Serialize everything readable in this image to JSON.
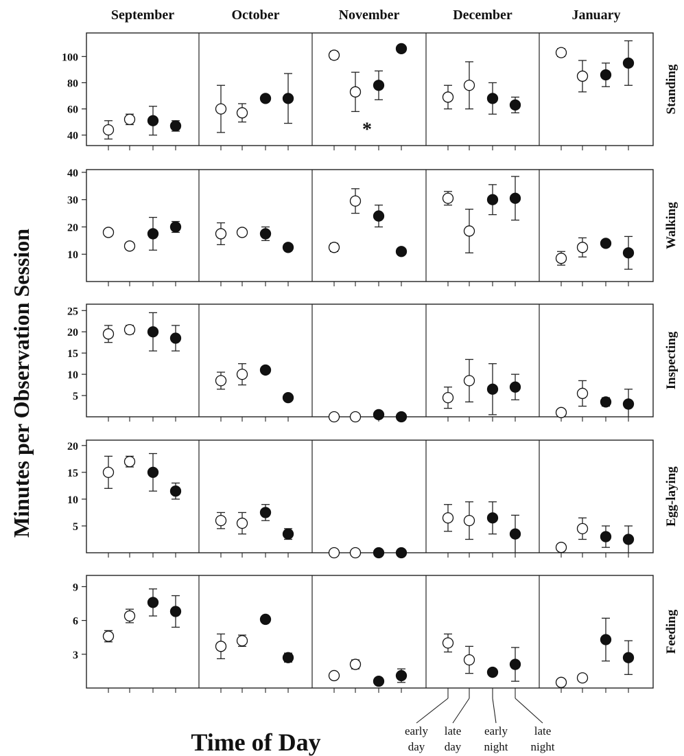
{
  "chart_data": {
    "type": "scatter",
    "error_bars": true,
    "grid": false,
    "ylabel": "Minutes per Observation Session",
    "xlabel": "Time of Day",
    "months": [
      "September",
      "October",
      "November",
      "December",
      "January"
    ],
    "time_of_day_legend": [
      {
        "line1": "early",
        "line2": "day",
        "filled": false
      },
      {
        "line1": "late",
        "line2": "day",
        "filled": false
      },
      {
        "line1": "early",
        "line2": "night",
        "filled": true
      },
      {
        "line1": "late",
        "line2": "night",
        "filled": true
      }
    ],
    "panels": [
      {
        "behavior": "Standing",
        "ylim": [
          32,
          118
        ],
        "yticks": [
          40,
          60,
          80,
          100
        ],
        "annotation": {
          "text": "*",
          "month": "November",
          "y": 46,
          "x_index": 1.5
        },
        "data": [
          {
            "month": "September",
            "points": [
              [
                44,
                7
              ],
              [
                52,
                4
              ],
              [
                51,
                11
              ],
              [
                47,
                4
              ]
            ]
          },
          {
            "month": "October",
            "points": [
              [
                60,
                18
              ],
              [
                57,
                7
              ],
              [
                68,
                0
              ],
              [
                68,
                19
              ]
            ]
          },
          {
            "month": "November",
            "points": [
              [
                101,
                3
              ],
              [
                73,
                15
              ],
              [
                78,
                11
              ],
              [
                106,
                0
              ]
            ]
          },
          {
            "month": "December",
            "points": [
              [
                69,
                9
              ],
              [
                78,
                18
              ],
              [
                68,
                12
              ],
              [
                63,
                6
              ]
            ]
          },
          {
            "month": "January",
            "points": [
              [
                103,
                3
              ],
              [
                85,
                12
              ],
              [
                86,
                9
              ],
              [
                95,
                17
              ]
            ]
          }
        ]
      },
      {
        "behavior": "Walking",
        "ylim": [
          0,
          41
        ],
        "yticks": [
          10,
          20,
          30,
          40
        ],
        "data": [
          {
            "month": "September",
            "points": [
              [
                18,
                0
              ],
              [
                13,
                1
              ],
              [
                17.5,
                6
              ],
              [
                20,
                2
              ]
            ]
          },
          {
            "month": "October",
            "points": [
              [
                17.5,
                4
              ],
              [
                18,
                0
              ],
              [
                17.5,
                2.5
              ],
              [
                12.5,
                0.5
              ]
            ]
          },
          {
            "month": "November",
            "points": [
              [
                12.5,
                1.5
              ],
              [
                29.5,
                4.5
              ],
              [
                24,
                4
              ],
              [
                11,
                0
              ]
            ]
          },
          {
            "month": "December",
            "points": [
              [
                30.5,
                2.5
              ],
              [
                18.5,
                8
              ],
              [
                30,
                5.5
              ],
              [
                30.5,
                8
              ]
            ]
          },
          {
            "month": "January",
            "points": [
              [
                8.5,
                2.5
              ],
              [
                12.5,
                3.5
              ],
              [
                14,
                0
              ],
              [
                10.5,
                6
              ]
            ]
          }
        ]
      },
      {
        "behavior": "Inspecting",
        "ylim": [
          0,
          26.5
        ],
        "yticks": [
          5,
          10,
          15,
          20,
          25
        ],
        "data": [
          {
            "month": "September",
            "points": [
              [
                19.5,
                2
              ],
              [
                20.5,
                1
              ],
              [
                20,
                4.5
              ],
              [
                18.5,
                3
              ]
            ]
          },
          {
            "month": "October",
            "points": [
              [
                8.5,
                2
              ],
              [
                10,
                2.5
              ],
              [
                11,
                0
              ],
              [
                4.5,
                0.5
              ]
            ]
          },
          {
            "month": "November",
            "points": [
              [
                0,
                0
              ],
              [
                0,
                0
              ],
              [
                0.5,
                0
              ],
              [
                0,
                0
              ]
            ]
          },
          {
            "month": "December",
            "points": [
              [
                4.5,
                2.5
              ],
              [
                8.5,
                5
              ],
              [
                6.5,
                6
              ],
              [
                7,
                3
              ]
            ]
          },
          {
            "month": "January",
            "points": [
              [
                1,
                0.5
              ],
              [
                5.5,
                3
              ],
              [
                3.5,
                1
              ],
              [
                3,
                3.5
              ]
            ]
          }
        ]
      },
      {
        "behavior": "Egg-laying",
        "ylim": [
          0,
          21
        ],
        "yticks": [
          5,
          10,
          15,
          20
        ],
        "data": [
          {
            "month": "September",
            "points": [
              [
                15,
                3
              ],
              [
                17,
                1
              ],
              [
                15,
                3.5
              ],
              [
                11.5,
                1.5
              ]
            ]
          },
          {
            "month": "October",
            "points": [
              [
                6,
                1.5
              ],
              [
                5.5,
                2
              ],
              [
                7.5,
                1.5
              ],
              [
                3.5,
                1
              ]
            ]
          },
          {
            "month": "November",
            "points": [
              [
                0,
                0
              ],
              [
                0,
                0
              ],
              [
                0,
                0
              ],
              [
                0,
                0
              ]
            ]
          },
          {
            "month": "December",
            "points": [
              [
                6.5,
                2.5
              ],
              [
                6,
                3.5
              ],
              [
                6.5,
                3
              ],
              [
                3.5,
                3.5
              ]
            ]
          },
          {
            "month": "January",
            "points": [
              [
                1,
                0.5
              ],
              [
                4.5,
                2
              ],
              [
                3,
                2
              ],
              [
                2.5,
                2.5
              ]
            ]
          }
        ]
      },
      {
        "behavior": "Feeding",
        "ylim": [
          0,
          10
        ],
        "yticks": [
          3,
          6,
          9
        ],
        "data": [
          {
            "month": "September",
            "points": [
              [
                4.6,
                0.5
              ],
              [
                6.4,
                0.6
              ],
              [
                7.6,
                1.2
              ],
              [
                6.8,
                1.4
              ]
            ]
          },
          {
            "month": "October",
            "points": [
              [
                3.7,
                1.1
              ],
              [
                4.2,
                0.5
              ],
              [
                6.1,
                0.3
              ],
              [
                2.7,
                0.4
              ]
            ]
          },
          {
            "month": "November",
            "points": [
              [
                1.1,
                0
              ],
              [
                2.1,
                0.4
              ],
              [
                0.6,
                0
              ],
              [
                1.1,
                0.6
              ]
            ]
          },
          {
            "month": "December",
            "points": [
              [
                4,
                0.8
              ],
              [
                2.5,
                1.2
              ],
              [
                1.4,
                0.3
              ],
              [
                2.1,
                1.5
              ]
            ]
          },
          {
            "month": "January",
            "points": [
              [
                0.5,
                0
              ],
              [
                0.9,
                0.1
              ],
              [
                4.3,
                1.9
              ],
              [
                2.7,
                1.5
              ]
            ]
          }
        ]
      }
    ]
  }
}
